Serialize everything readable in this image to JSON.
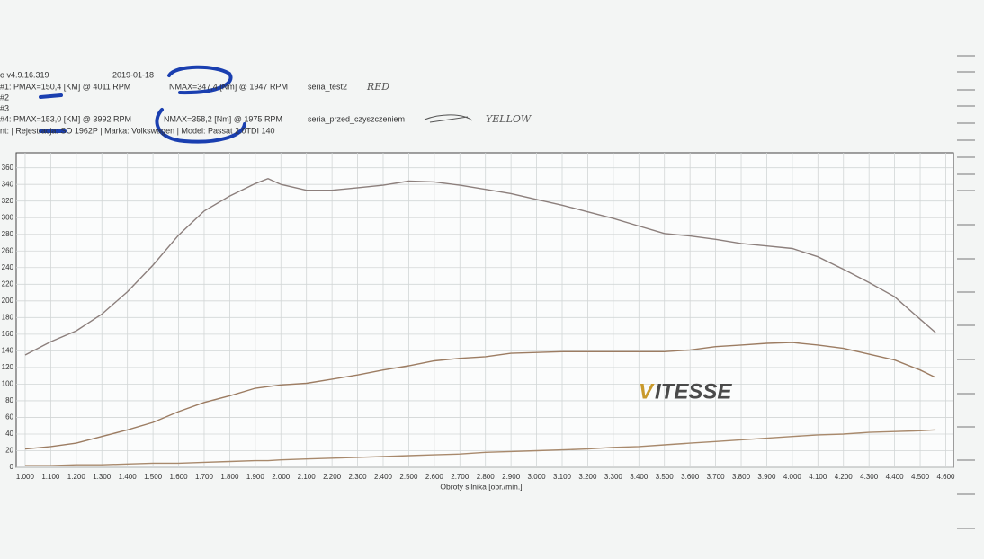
{
  "chart_data": {
    "type": "line",
    "annotations": [
      "o v4.9.16.319",
      "2019-01-18",
      "#1: PMAX=150,4 [KM] @ 4011 RPM",
      "NMAX=347,4 [Nm] @ 1947 RPM",
      "seria_test2",
      "RED",
      "#2",
      "#3",
      "#4: PMAX=153,0 [KM] @ 3992 RPM",
      "NMAX=358,2 [Nm] @ 1975 RPM",
      "seria_przed_czyszczeniem",
      "YELLOW",
      "nt: | Rejestracja: SO 1962P | Marka: Volkswagen | Model: Passat 2.0TDI 140"
    ],
    "watermark": [
      "V",
      "ITESSE"
    ],
    "x_label": "Obroty silnika [obr./min.]",
    "x": [
      1000,
      1100,
      1200,
      1300,
      1400,
      1500,
      1600,
      1700,
      1800,
      1900,
      1950,
      2000,
      2100,
      2200,
      2300,
      2400,
      2500,
      2600,
      2700,
      2800,
      2900,
      3000,
      3100,
      3200,
      3300,
      3400,
      3500,
      3600,
      3700,
      3800,
      3900,
      4000,
      4100,
      4200,
      4300,
      4400,
      4500,
      4560
    ],
    "series": [
      {
        "color": "#8c7f7c",
        "values": [
          135,
          151,
          164,
          184,
          211,
          243,
          279,
          308,
          326,
          341,
          347,
          340,
          333,
          333,
          336,
          339,
          344,
          343,
          339,
          334,
          329,
          322,
          315,
          307,
          299,
          290,
          281,
          278,
          274,
          269,
          266,
          263,
          253,
          238,
          222,
          205,
          178,
          162
        ]
      },
      {
        "color": "#9c7c62",
        "values": [
          22,
          25,
          29,
          37,
          45,
          54,
          67,
          78,
          86,
          95,
          97,
          99,
          101,
          106,
          111,
          117,
          122,
          128,
          131,
          133,
          137,
          138,
          139,
          139,
          139,
          139,
          139,
          141,
          145,
          147,
          149,
          150,
          147,
          143,
          136,
          129,
          117,
          108
        ]
      },
      {
        "color": "#a8896c",
        "values": [
          2,
          2,
          3,
          3,
          4,
          5,
          5,
          6,
          7,
          8,
          8,
          9,
          10,
          11,
          12,
          13,
          14,
          15,
          16,
          18,
          19,
          20,
          21,
          22,
          24,
          25,
          27,
          29,
          31,
          33,
          35,
          37,
          39,
          40,
          42,
          43,
          44,
          45
        ]
      }
    ],
    "xlim": [
      965,
      4630
    ],
    "ylim": [
      0,
      378
    ],
    "xticks": [
      {
        "value": 1000,
        "label": "1.000"
      },
      {
        "value": 1100,
        "label": "1.100"
      },
      {
        "value": 1200,
        "label": "1.200"
      },
      {
        "value": 1300,
        "label": "1.300"
      },
      {
        "value": 1400,
        "label": "1.400"
      },
      {
        "value": 1500,
        "label": "1.500"
      },
      {
        "value": 1600,
        "label": "1.600"
      },
      {
        "value": 1700,
        "label": "1.700"
      },
      {
        "value": 1800,
        "label": "1.800"
      },
      {
        "value": 1900,
        "label": "1.900"
      },
      {
        "value": 2000,
        "label": "2.000"
      },
      {
        "value": 2100,
        "label": "2.100"
      },
      {
        "value": 2200,
        "label": "2.200"
      },
      {
        "value": 2300,
        "label": "2.300"
      },
      {
        "value": 2400,
        "label": "2.400"
      },
      {
        "value": 2500,
        "label": "2.500"
      },
      {
        "value": 2600,
        "label": "2.600"
      },
      {
        "value": 2700,
        "label": "2.700"
      },
      {
        "value": 2800,
        "label": "2.800"
      },
      {
        "value": 2900,
        "label": "2.900"
      },
      {
        "value": 3000,
        "label": "3.000"
      },
      {
        "value": 3100,
        "label": "3.100"
      },
      {
        "value": 3200,
        "label": "3.200"
      },
      {
        "value": 3300,
        "label": "3.300"
      },
      {
        "value": 3400,
        "label": "3.400"
      },
      {
        "value": 3500,
        "label": "3.500"
      },
      {
        "value": 3600,
        "label": "3.600"
      },
      {
        "value": 3700,
        "label": "3.700"
      },
      {
        "value": 3800,
        "label": "3.800"
      },
      {
        "value": 3900,
        "label": "3.900"
      },
      {
        "value": 4000,
        "label": "4.000"
      },
      {
        "value": 4100,
        "label": "4.100"
      },
      {
        "value": 4200,
        "label": "4.200"
      },
      {
        "value": 4300,
        "label": "4.300"
      },
      {
        "value": 4400,
        "label": "4.400"
      },
      {
        "value": 4500,
        "label": "4.500"
      },
      {
        "value": 4600,
        "label": "4.600"
      }
    ],
    "yticks": [
      0,
      20,
      40,
      60,
      80,
      100,
      120,
      140,
      160,
      180,
      200,
      220,
      240,
      260,
      280,
      300,
      320,
      340,
      360
    ],
    "grid": true
  }
}
